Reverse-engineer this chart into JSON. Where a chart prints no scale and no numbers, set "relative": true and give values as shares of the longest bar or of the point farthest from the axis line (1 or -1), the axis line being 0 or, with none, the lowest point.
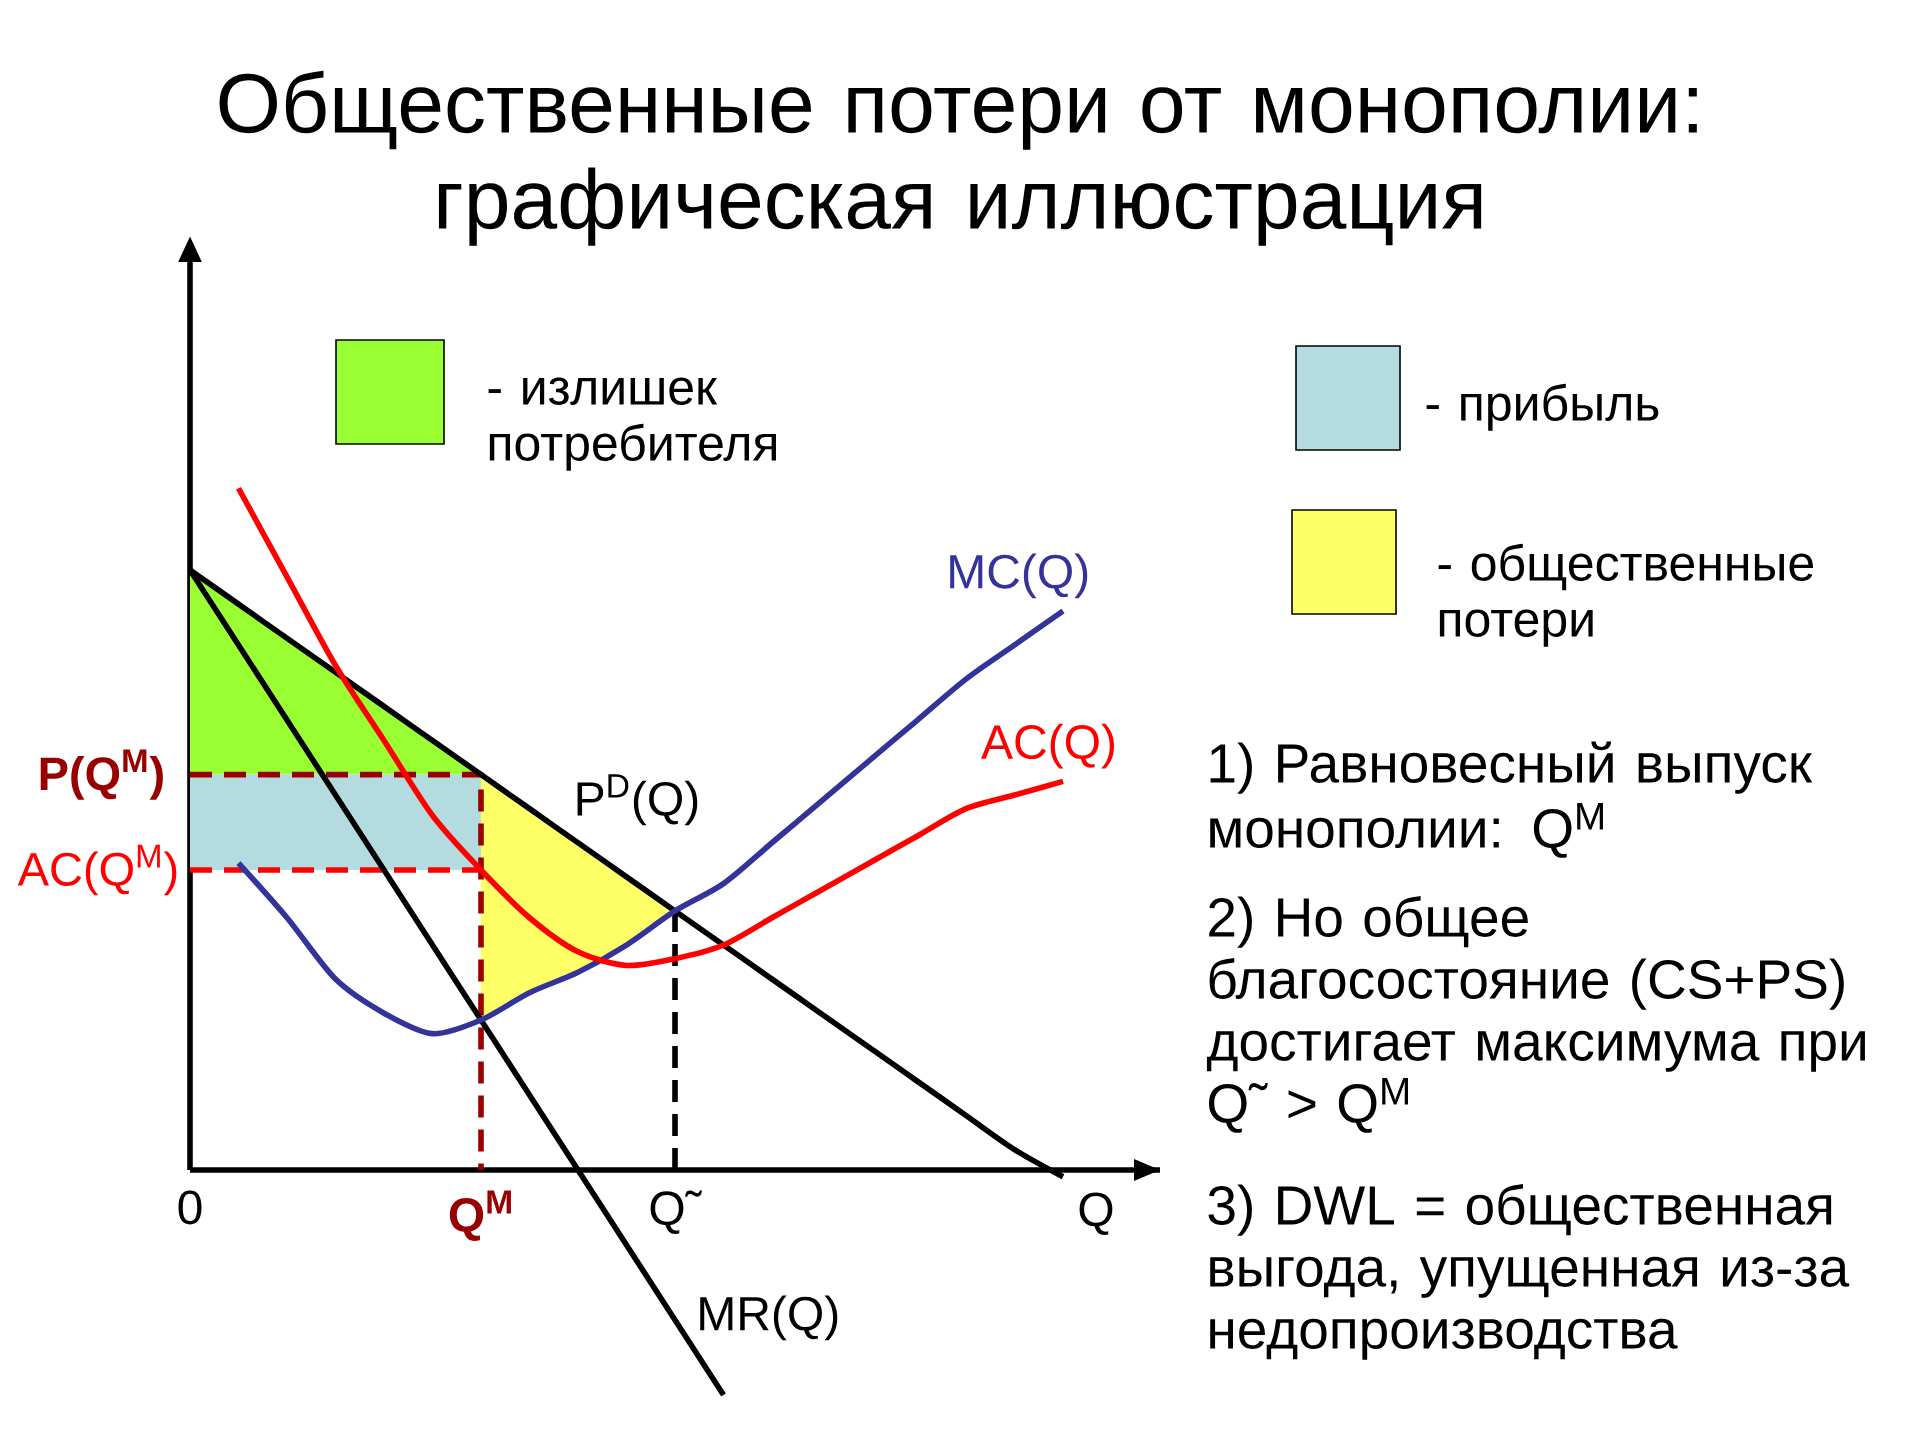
{
  "chart_data": {
    "type": "line",
    "title": "Общественные потери от монополии: графическая иллюстрация",
    "xlabel": "Q",
    "relative": true,
    "categories": [
      "0",
      null,
      null,
      null,
      null,
      null,
      "Q$^{M}$",
      null,
      null,
      null,
      "Q˜",
      null,
      null,
      null,
      null,
      null,
      null,
      null,
      null,
      null,
      null
    ],
    "legend": "top",
    "series": [
      {
        "name": "- излишек потребителя",
        "color": "#99ff33",
        "values": [
          null,
          null,
          null,
          null,
          null,
          null,
          null,
          null,
          null,
          null,
          null,
          null,
          null,
          null,
          null,
          null,
          null,
          null,
          null,
          null,
          null
        ],
        "upper": [
          0.88,
          0.83,
          0.78,
          0.73,
          0.68,
          0.63,
          0.58,
          null,
          null,
          null,
          null,
          null,
          null,
          null,
          null,
          null,
          null,
          null,
          null,
          null,
          null
        ],
        "lower": [
          0.58,
          0.58,
          0.58,
          0.58,
          0.58,
          0.58,
          0.58,
          null,
          null,
          null,
          null,
          null,
          null,
          null,
          null,
          null,
          null,
          null,
          null,
          null,
          null
        ]
      },
      {
        "name": "- прибыль",
        "color": "#b4dce0",
        "values": [
          null,
          null,
          null,
          null,
          null,
          null,
          null,
          null,
          null,
          null,
          null,
          null,
          null,
          null,
          null,
          null,
          null,
          null,
          null,
          null,
          null
        ],
        "upper": [
          0.58,
          0.58,
          0.58,
          0.58,
          0.58,
          0.58,
          0.58,
          null,
          null,
          null,
          null,
          null,
          null,
          null,
          null,
          null,
          null,
          null,
          null,
          null,
          null
        ],
        "lower": [
          0.44,
          0.44,
          0.44,
          0.44,
          0.44,
          0.44,
          0.44,
          null,
          null,
          null,
          null,
          null,
          null,
          null,
          null,
          null,
          null,
          null,
          null,
          null,
          null
        ]
      },
      {
        "name": "- общественные потери",
        "color": "#ffff66",
        "values": [
          null,
          null,
          null,
          null,
          null,
          null,
          null,
          null,
          null,
          null,
          null,
          null,
          null,
          null,
          null,
          null,
          null,
          null,
          null,
          null,
          null
        ],
        "upper": [
          null,
          null,
          null,
          null,
          null,
          null,
          0.58,
          0.53,
          0.48,
          0.43,
          0.38,
          null,
          null,
          null,
          null,
          null,
          null,
          null,
          null,
          null,
          null
        ],
        "lower": [
          null,
          null,
          null,
          null,
          null,
          null,
          0.22,
          0.26,
          0.29,
          0.33,
          0.38,
          null,
          null,
          null,
          null,
          null,
          null,
          null,
          null,
          null,
          null
        ]
      },
      {
        "name": "P(Q$^{M}$)",
        "color": "#990000",
        "line_style": "dashed",
        "x": [
          "0",
          "Q$^{M}$",
          "Q$^{M}$"
        ],
        "values": [
          0.58,
          0.58,
          0
        ]
      },
      {
        "name": "AC(Q$^{M}$)",
        "color": "#ff0000",
        "line_style": "dashed",
        "x": [
          "0",
          "Q$^{M}$"
        ],
        "values": [
          0.44,
          0.44
        ]
      },
      {
        "color": "#000000",
        "line_style": "dashed",
        "x": [
          "Q˜",
          "Q˜"
        ],
        "values": [
          0,
          0.38
        ]
      },
      {
        "name": "P$^{D}$(Q)",
        "color": "#000000",
        "values": [
          0.88,
          0.83,
          0.78,
          0.73,
          0.68,
          0.63,
          0.58,
          0.53,
          0.48,
          0.43,
          0.38,
          0.33,
          0.28,
          0.23,
          0.18,
          0.13,
          0.08,
          0.03,
          -0.01,
          null,
          null
        ]
      },
      {
        "name": "MR(Q)",
        "color": "#000000",
        "values": [
          0.88,
          0.77,
          0.66,
          0.55,
          0.44,
          0.33,
          0.22,
          0.11,
          0,
          -0.11,
          -0.22,
          -0.33,
          null,
          null,
          null,
          null,
          null,
          null,
          null,
          null,
          null
        ]
      },
      {
        "name": "MC(Q)",
        "color": "#333399",
        "values": [
          null,
          0.45,
          0.37,
          0.28,
          0.23,
          0.2,
          0.22,
          0.26,
          0.29,
          0.33,
          0.38,
          0.42,
          0.48,
          0.54,
          0.6,
          0.66,
          0.72,
          0.77,
          0.82,
          null,
          null
        ]
      },
      {
        "name": "AC(Q)",
        "color": "#ff0000",
        "values": [
          null,
          1.0,
          0.87,
          0.74,
          0.63,
          0.52,
          0.44,
          0.37,
          0.32,
          0.3,
          0.31,
          0.33,
          0.37,
          0.41,
          0.45,
          0.49,
          0.53,
          0.55,
          0.57,
          null,
          null
        ]
      }
    ],
    "annotations": [
      "1) Равновесный выпуск монополии: Q$^{M}$",
      "2) Но общее благосостояние (CS+PS) достигает максимума при Q˜ > Q$^{M}$",
      "3) DWL = общественная выгода, упущенная из-за недопроизводства"
    ]
  }
}
